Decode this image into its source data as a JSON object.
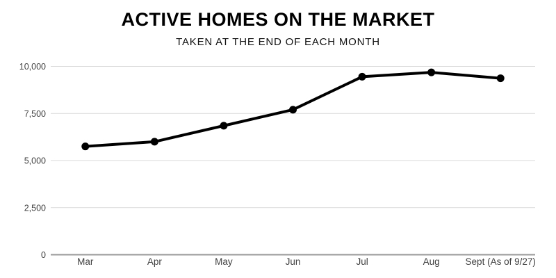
{
  "page": {
    "background_color": "#ffffff"
  },
  "header": {
    "title": "ACTIVE HOMES ON THE MARKET",
    "subtitle": "TAKEN AT THE END OF EACH MONTH"
  },
  "chart_data": {
    "type": "line",
    "title": "ACTIVE HOMES ON THE MARKET",
    "subtitle": "TAKEN AT THE END OF EACH MONTH",
    "categories": [
      "Mar",
      "Apr",
      "May",
      "Jun",
      "Jul",
      "Aug",
      "Sept (As of 9/27)"
    ],
    "series": [
      {
        "name": "Active homes on the market",
        "values": [
          5750,
          6000,
          6850,
          7700,
          9450,
          9680,
          9370
        ]
      }
    ],
    "ylim": [
      0,
      10000
    ],
    "yticks": [
      0,
      2500,
      5000,
      7500,
      10000
    ],
    "ytick_labels": [
      "0",
      "2,500",
      "5,000",
      "7,500",
      "10,000"
    ],
    "xlabel": "",
    "ylabel": "",
    "grid": "horizontal",
    "legend_position": "none",
    "colors": {
      "line": "#000000",
      "marker": "#000000",
      "gridline": "#d9d9d9",
      "zero_axis_line": "#999999",
      "tick_label": "#404040",
      "title": "#000000"
    },
    "marker_style": "filled-circle"
  }
}
